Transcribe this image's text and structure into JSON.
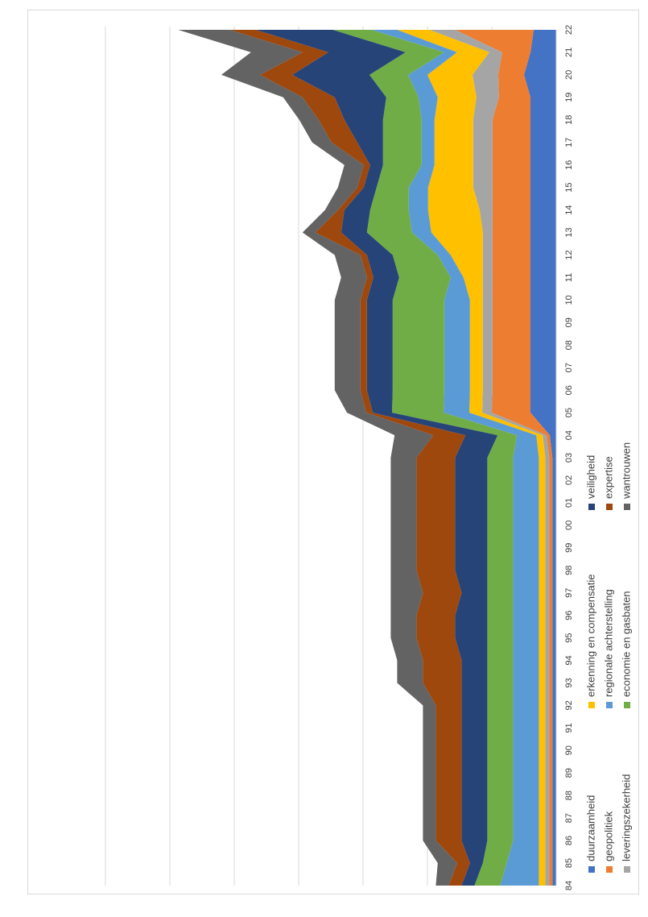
{
  "chart_data": {
    "type": "area",
    "stacked": true,
    "orientation": "rotated-90-clockwise",
    "title": "",
    "xlabel": "",
    "ylabel": "",
    "grid": true,
    "legend_position": "right",
    "ylim": [
      0,
      70
    ],
    "y_gridlines": [
      10,
      20,
      30,
      40,
      50,
      60,
      70
    ],
    "x": [
      "84",
      "85",
      "86",
      "87",
      "88",
      "89",
      "90",
      "91",
      "92",
      "93",
      "94",
      "95",
      "96",
      "97",
      "98",
      "99",
      "00",
      "01",
      "02",
      "03",
      "04",
      "05",
      "06",
      "07",
      "08",
      "09",
      "10",
      "11",
      "12",
      "13",
      "14",
      "15",
      "16",
      "17",
      "18",
      "19",
      "20",
      "21",
      "22"
    ],
    "series": [
      {
        "name": "duurzaamheid",
        "color": "#4472C4",
        "values": [
          0.6,
          0.6,
          0.6,
          0.6,
          0.6,
          0.6,
          0.6,
          0.6,
          0.6,
          0.6,
          0.6,
          0.6,
          0.6,
          0.6,
          0.6,
          0.6,
          0.6,
          0.6,
          0.6,
          0.6,
          1,
          4,
          4,
          4,
          4,
          4,
          4,
          4,
          4,
          4,
          4,
          4,
          4,
          4,
          4,
          4,
          5,
          4,
          3.5
        ]
      },
      {
        "name": "geopolitiek",
        "color": "#ED7D31",
        "values": [
          0.5,
          0.5,
          0.5,
          0.5,
          0.5,
          0.5,
          0.5,
          0.5,
          0.5,
          0.5,
          0.5,
          0.5,
          0.5,
          0.5,
          0.5,
          0.5,
          0.5,
          0.5,
          0.5,
          0.5,
          0.5,
          6,
          5.9,
          5.9,
          5.9,
          5.9,
          5.9,
          5.9,
          5.9,
          5.9,
          5.9,
          5.9,
          5.9,
          5.9,
          5.9,
          4.9,
          4,
          4.4,
          12.2
        ]
      },
      {
        "name": "leveringszekerheid",
        "color": "#A5A5A5",
        "values": [
          0.6,
          0.6,
          0.6,
          0.6,
          0.6,
          0.6,
          0.6,
          0.6,
          0.6,
          0.6,
          0.6,
          0.6,
          0.6,
          0.6,
          0.6,
          0.6,
          0.6,
          0.6,
          0.6,
          0.6,
          0.6,
          1.5,
          1.5,
          1.5,
          1.5,
          1.5,
          1.5,
          1.5,
          1.5,
          1.5,
          2,
          3,
          3,
          3,
          3,
          3.5,
          4,
          2,
          4
        ]
      },
      {
        "name": "erkenning en compensatie",
        "color": "#FFC000",
        "values": [
          1,
          1,
          1,
          1,
          1,
          1,
          1,
          1,
          1,
          1,
          1,
          1,
          1,
          1,
          1,
          1,
          1,
          1,
          1,
          1,
          1,
          2,
          2,
          2,
          2,
          2,
          2,
          3,
          5,
          8,
          8,
          7,
          6,
          6,
          6,
          6,
          7,
          5,
          5
        ]
      },
      {
        "name": "regionale achterstelling",
        "color": "#5B9BD5",
        "values": [
          6,
          5,
          4,
          4,
          4,
          4,
          4,
          4,
          4,
          4,
          4,
          4,
          4,
          4,
          4,
          4,
          4,
          4,
          4,
          4,
          3,
          4,
          4,
          4,
          4,
          4,
          4,
          2,
          2,
          3,
          3,
          3,
          2,
          2,
          2,
          3,
          3,
          2,
          4
        ]
      },
      {
        "name": "economie en gasbaten",
        "color": "#70AD47",
        "values": [
          4,
          3.7,
          4,
          4,
          4,
          4,
          4,
          4,
          4,
          4,
          4,
          4,
          4,
          4,
          4,
          4,
          4,
          4,
          4,
          4,
          3,
          8,
          8,
          8,
          8,
          8,
          8,
          8,
          7,
          7,
          6,
          5,
          6,
          6,
          6,
          5,
          6,
          6,
          6
        ]
      },
      {
        "name": "veiligheid",
        "color": "#264478",
        "values": [
          2,
          2,
          4,
          4,
          4,
          4,
          4,
          4,
          4,
          4,
          4,
          5,
          5,
          4,
          5,
          5,
          5,
          5,
          5,
          5,
          5,
          3,
          4,
          4,
          4,
          4,
          4,
          4,
          4,
          4,
          4,
          2,
          2,
          4,
          6,
          8,
          12,
          12,
          12
        ]
      },
      {
        "name": "expertise",
        "color": "#9E480E",
        "values": [
          2,
          2,
          4,
          4,
          4,
          4,
          4,
          4,
          4,
          6,
          6,
          6,
          6,
          6,
          6,
          6,
          6,
          6,
          6,
          6,
          5,
          1,
          1,
          1,
          1,
          1,
          1,
          1,
          1,
          4,
          1,
          1,
          1,
          4,
          4,
          5,
          5,
          4,
          4
        ]
      },
      {
        "name": "wantrouwen",
        "color": "#636363",
        "values": [
          2,
          3,
          2,
          2,
          2,
          2,
          2,
          2,
          2,
          4,
          4,
          4,
          4,
          5,
          4,
          4,
          4,
          4,
          4,
          4,
          6,
          3,
          4,
          4,
          4,
          4,
          4,
          4,
          4,
          2,
          2,
          3,
          3,
          3,
          3,
          3,
          6,
          8,
          8
        ]
      }
    ]
  }
}
